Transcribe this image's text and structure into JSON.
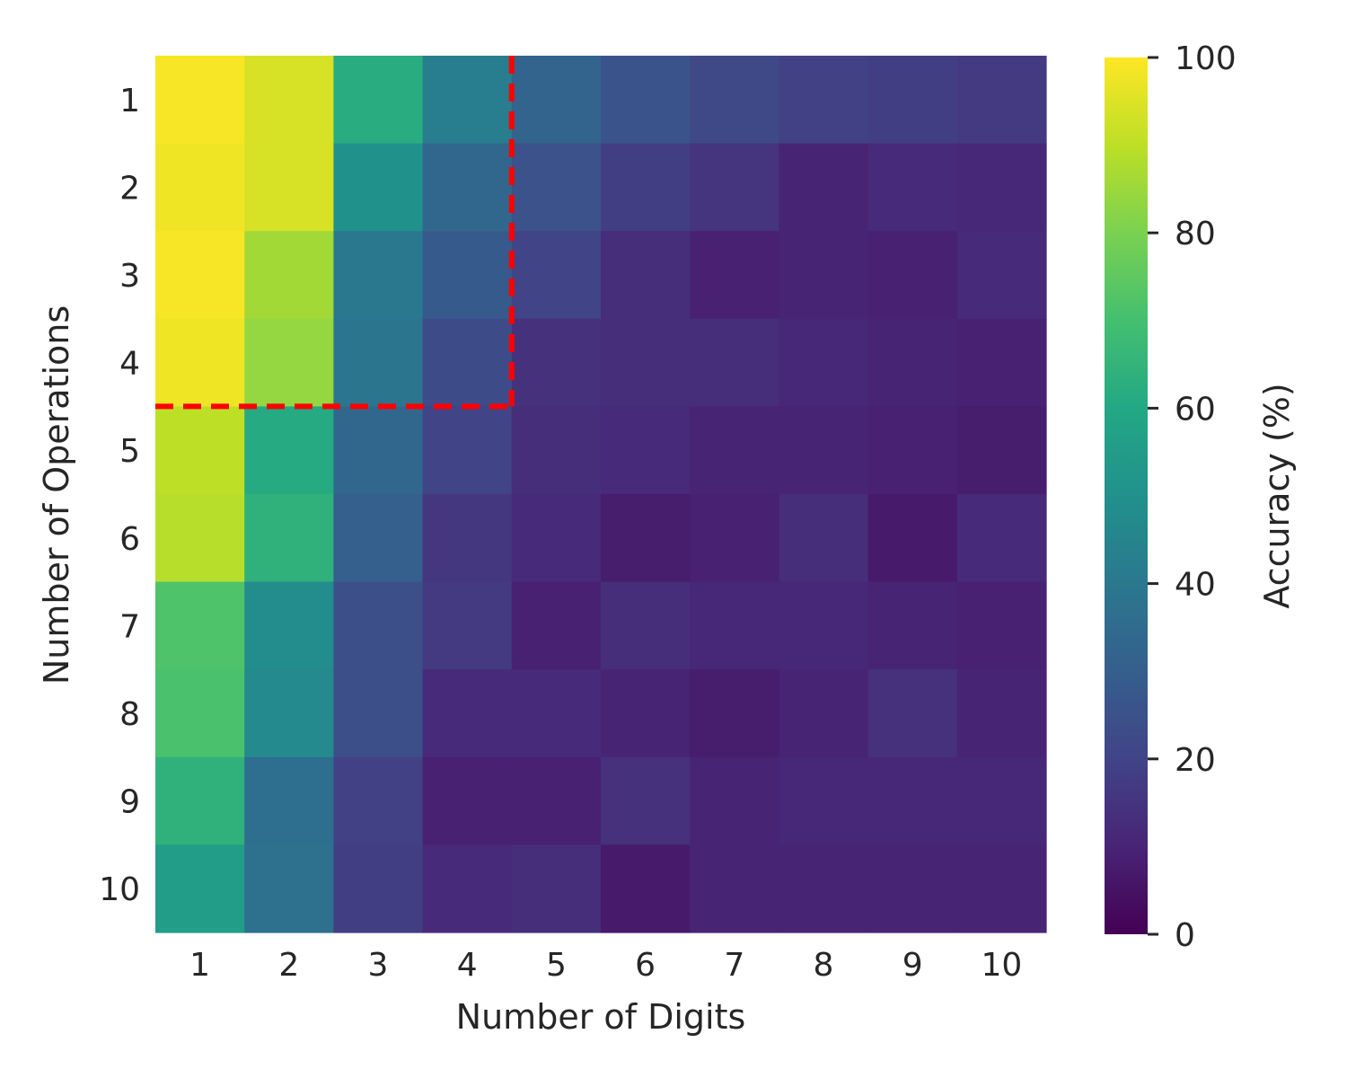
{
  "chart_data": {
    "type": "heatmap",
    "xlabel": "Number of Digits",
    "ylabel": "Number of Operations",
    "x_categories": [
      "1",
      "2",
      "3",
      "4",
      "5",
      "6",
      "7",
      "8",
      "9",
      "10"
    ],
    "y_categories": [
      "1",
      "2",
      "3",
      "4",
      "5",
      "6",
      "7",
      "8",
      "9",
      "10"
    ],
    "values": [
      [
        99,
        94,
        62,
        42,
        32,
        26,
        22,
        19,
        18,
        17
      ],
      [
        98,
        94,
        50,
        33,
        25,
        18,
        15,
        10,
        12,
        11
      ],
      [
        99,
        86,
        40,
        28,
        20,
        13,
        9,
        10,
        9,
        12
      ],
      [
        98,
        84,
        39,
        23,
        14,
        13,
        13,
        11,
        10,
        9
      ],
      [
        90,
        61,
        33,
        20,
        13,
        12,
        10,
        10,
        9,
        8
      ],
      [
        89,
        64,
        30,
        16,
        12,
        8,
        9,
        13,
        7,
        12
      ],
      [
        72,
        48,
        24,
        17,
        9,
        13,
        11,
        11,
        10,
        9
      ],
      [
        71,
        47,
        24,
        12,
        12,
        10,
        8,
        10,
        14,
        10
      ],
      [
        64,
        36,
        19,
        9,
        9,
        14,
        10,
        11,
        11,
        11
      ],
      [
        55,
        37,
        18,
        12,
        13,
        7,
        10,
        10,
        10,
        10
      ]
    ],
    "colorbar": {
      "label": "Accuracy (%)",
      "min": 0,
      "max": 100,
      "ticks": [
        "0",
        "20",
        "40",
        "60",
        "80",
        "100"
      ],
      "colormap": "viridis"
    },
    "annotation": {
      "type": "dashed-boundary",
      "color": "#ff0000",
      "encloses_digits_up_to": 4,
      "encloses_operations_up_to": 4
    }
  }
}
